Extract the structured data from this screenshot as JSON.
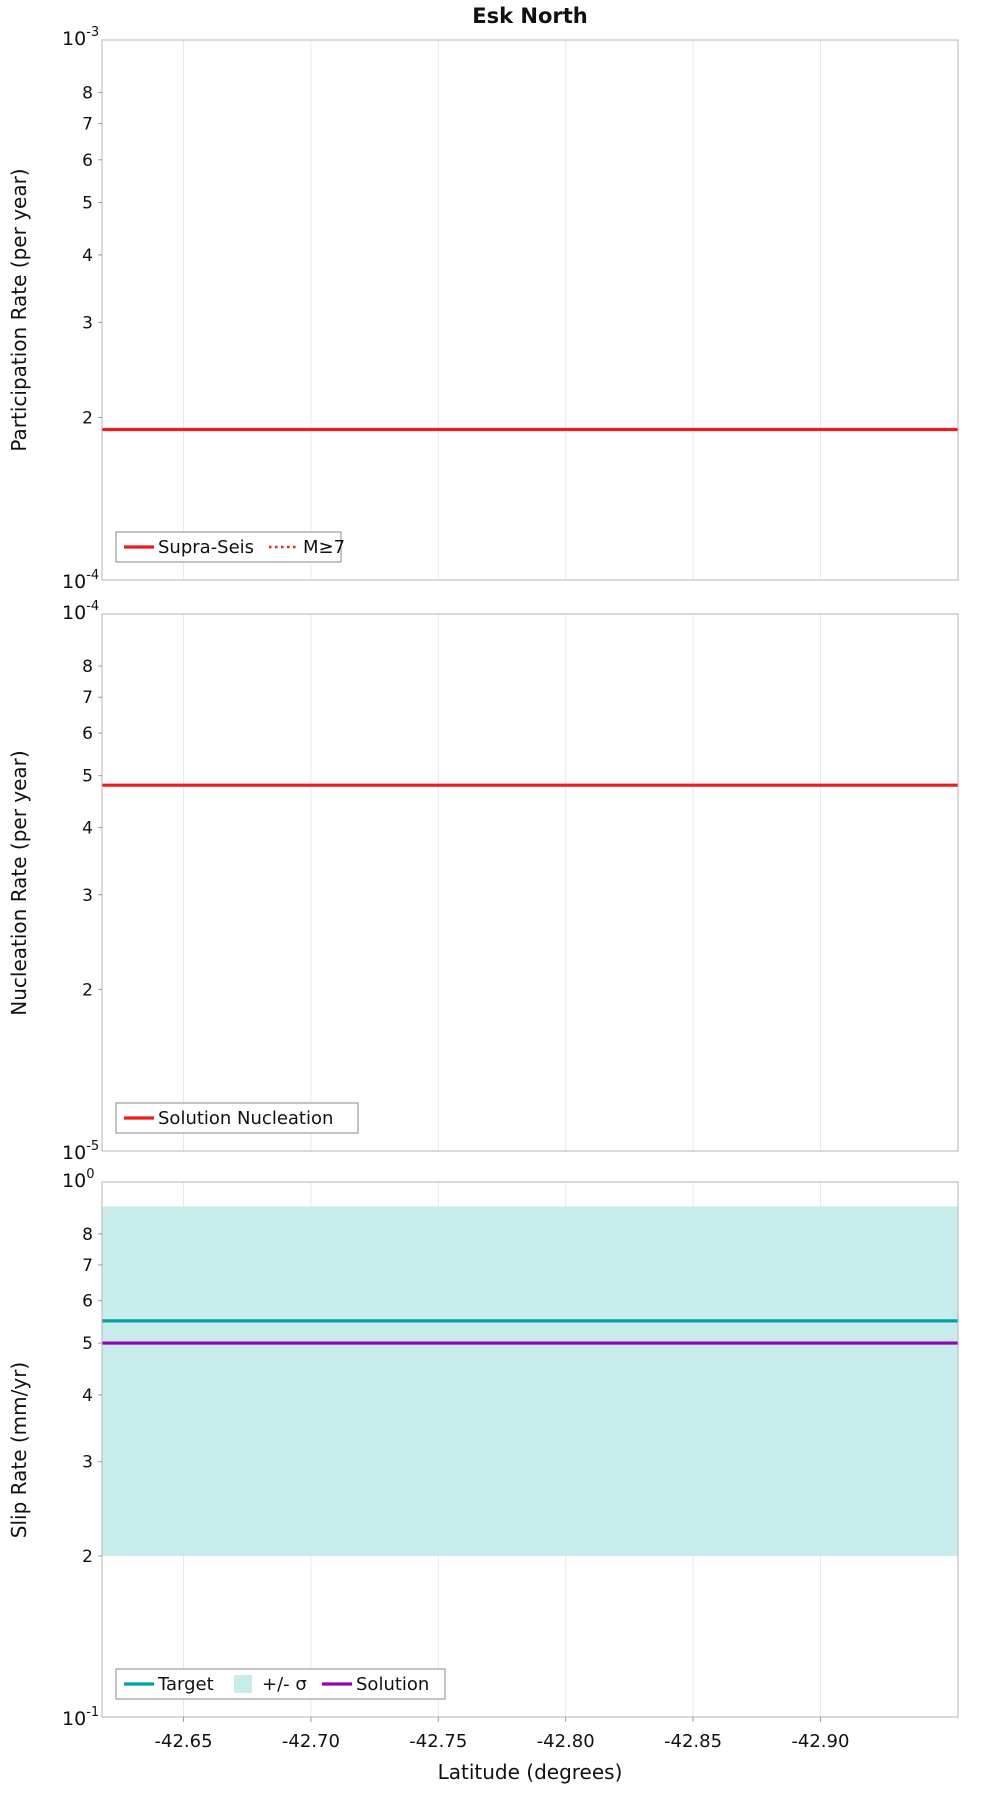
{
  "page_title": "Esk North",
  "x_axis": {
    "label": "Latitude (degrees)",
    "lim": [
      -42.618,
      -42.954
    ],
    "ticks": [
      {
        "v": -42.65,
        "label": "-42.65"
      },
      {
        "v": -42.7,
        "label": "-42.70"
      },
      {
        "v": -42.75,
        "label": "-42.75"
      },
      {
        "v": -42.8,
        "label": "-42.80"
      },
      {
        "v": -42.85,
        "label": "-42.85"
      },
      {
        "v": -42.9,
        "label": "-42.90"
      }
    ]
  },
  "colors": {
    "red": "#ee1c1c",
    "teal": "#00a2a8",
    "purple": "#9400b8",
    "band": "#c8eceb",
    "grid": "#e8e8e8",
    "border": "#b4b4b4"
  },
  "chart_data": [
    {
      "type": "line",
      "ylabel": "Participation Rate (per year)",
      "yscale": "log",
      "ylim": [
        0.0001,
        0.001
      ],
      "gridlines": {
        "x": true,
        "y": false
      },
      "y_major_labels": [
        {
          "text": "10",
          "exp": "-3",
          "at": "top"
        },
        {
          "text": "10",
          "exp": "-4",
          "at": "bottom"
        }
      ],
      "y_minor_labels": [
        2,
        3,
        4,
        5,
        6,
        7,
        8
      ],
      "series": [
        {
          "name": "Supra-Seis",
          "style": "solid",
          "color": "#ee1c1c",
          "width": 3.2,
          "value": 0.00019,
          "x_extent": "full"
        },
        {
          "name": "M≥7",
          "style": "dotted",
          "color": "#ee1c1c",
          "width": 2.6,
          "value": 0.00019,
          "x_extent": "full"
        }
      ],
      "legend": {
        "position": "bottom-left",
        "entries": [
          {
            "label": "Supra-Seis",
            "swatch": "line-solid",
            "color": "#ee1c1c"
          },
          {
            "label": "M≥7",
            "swatch": "line-dotted",
            "color": "#ee1c1c"
          }
        ]
      }
    },
    {
      "type": "line",
      "ylabel": "Nucleation Rate (per year)",
      "yscale": "log",
      "ylim": [
        1e-05,
        0.0001
      ],
      "gridlines": {
        "x": true,
        "y": false
      },
      "y_major_labels": [
        {
          "text": "10",
          "exp": "-4",
          "at": "top"
        },
        {
          "text": "10",
          "exp": "-5",
          "at": "bottom"
        }
      ],
      "y_minor_labels": [
        2,
        3,
        4,
        5,
        6,
        7,
        8
      ],
      "series": [
        {
          "name": "Solution Nucleation",
          "style": "solid",
          "color": "#ee1c1c",
          "width": 3.2,
          "value": 4.8e-05,
          "x_extent": "full"
        }
      ],
      "legend": {
        "position": "bottom-left",
        "entries": [
          {
            "label": "Solution Nucleation",
            "swatch": "line-solid",
            "color": "#ee1c1c"
          }
        ]
      }
    },
    {
      "type": "line+band",
      "ylabel": "Slip Rate (mm/yr)",
      "yscale": "log",
      "ylim": [
        0.1,
        1.0
      ],
      "gridlines": {
        "x": true,
        "y": false
      },
      "y_major_labels": [
        {
          "text": "10",
          "exp": "0",
          "at": "top"
        },
        {
          "text": "10",
          "exp": "-1",
          "at": "bottom"
        }
      ],
      "y_minor_labels": [
        2,
        3,
        4,
        5,
        6,
        7,
        8
      ],
      "band": {
        "name": "+/- σ",
        "low": 0.2,
        "high": 0.9,
        "color": "#c8eceb",
        "x_extent": "full"
      },
      "series": [
        {
          "name": "Target",
          "style": "solid",
          "color": "#00a2a8",
          "width": 3.2,
          "value": 0.55,
          "x_extent": "full"
        },
        {
          "name": "Solution",
          "style": "solid",
          "color": "#9400b8",
          "width": 3.2,
          "value": 0.5,
          "x_extent": "full"
        }
      ],
      "legend": {
        "position": "bottom-left",
        "entries": [
          {
            "label": "Target",
            "swatch": "line-solid",
            "color": "#00a2a8"
          },
          {
            "label": "+/- σ",
            "swatch": "patch",
            "color": "#c8eceb"
          },
          {
            "label": "Solution",
            "swatch": "line-solid",
            "color": "#9400b8"
          }
        ]
      }
    }
  ]
}
